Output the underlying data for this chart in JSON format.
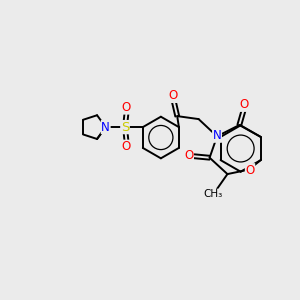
{
  "background_color": "#ebebeb",
  "atom_colors": {
    "N": "#0000FF",
    "O": "#FF0000",
    "S": "#CCCC00",
    "C": "#000000"
  },
  "bond_color": "#000000",
  "bond_width": 1.4,
  "fig_width": 3.0,
  "fig_height": 3.0,
  "dpi": 100
}
